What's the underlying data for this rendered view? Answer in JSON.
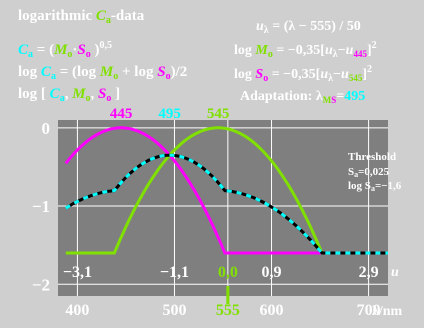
{
  "header": {
    "l1_a": "logarithmic ",
    "l1_b": "C",
    "l1_c": "a",
    "l1_d": "-data",
    "l2_a": "C",
    "l2_b": "a",
    "l2_c": " = (",
    "l2_d": "M",
    "l2_e": "o",
    "l2_f": "·",
    "l2_g": "S",
    "l2_h": "o",
    "l2_i": " )",
    "l2_j": "0,5",
    "l3_a": "log ",
    "l3_b": "C",
    "l3_c": "a",
    "l3_d": " = (log ",
    "l3_e": "M",
    "l3_f": "o",
    "l3_g": " + log ",
    "l3_h": "S",
    "l3_i": "o",
    "l3_j": ")/2",
    "l4_a": "log [ ",
    "l4_b": "C",
    "l4_c": "a",
    "l4_d": ", ",
    "l4_e": "M",
    "l4_f": "o",
    "l4_g": ", ",
    "l4_h": "S",
    "l4_i": "o",
    "l4_j": " ]",
    "r1_a": "u",
    "r1_b": "λ",
    "r1_c": " = (λ − 555) / 50",
    "r2_a": "log ",
    "r2_b": "M",
    "r2_c": "o",
    "r2_d": " = −0,35[",
    "r2_e": "u",
    "r2_f": "λ",
    "r2_g": "−",
    "r2_h": "u",
    "r2_i": "445",
    "r2_j": "]",
    "r2_k": "2",
    "r3_a": "log ",
    "r3_b": "S",
    "r3_c": "o",
    "r3_d": " = −0,35[",
    "r3_e": "u",
    "r3_f": "λ",
    "r3_g": "−",
    "r3_h": "u",
    "r3_i": "545",
    "r3_j": "]",
    "r3_k": "2",
    "r4_a": "Adaptation: λ",
    "r4_b": "M",
    "r4_c": "S",
    "r4_d": "=",
    "r4_e": "495"
  },
  "threshold": {
    "title": "Threshold",
    "l2_a": "S",
    "l2_b": "a",
    "l2_c": "=0,025",
    "l3_a": "log S",
    "l3_b": "a",
    "l3_c": "=−1,6"
  },
  "colors": {
    "magenta": "#ff00ff",
    "green": "#80e000",
    "cyan": "#00ffff",
    "black": "#000000",
    "white": "#ffffff",
    "red": "#ff0000",
    "gray_bg": "#cfcfcf",
    "plot_bg": "#7f7f7f",
    "dark_text": "#000000"
  },
  "chart_data": {
    "type": "line",
    "xlabel": "λ/nm",
    "u_label": "u",
    "xlim": [
      380,
      720
    ],
    "ylim": [
      -2.15,
      0.1
    ],
    "x_ticks": [
      {
        "v": 400,
        "label": "400"
      },
      {
        "v": 500,
        "label": "500"
      },
      {
        "v": 555,
        "label": "555"
      },
      {
        "v": 600,
        "label": "600"
      },
      {
        "v": 700,
        "label": "700"
      }
    ],
    "y_ticks": [
      {
        "v": 0,
        "label": "0"
      },
      {
        "v": -1,
        "label": "−1"
      },
      {
        "v": -2,
        "label": "−2"
      }
    ],
    "u_ticks": [
      {
        "v": 400,
        "label": "−3,1"
      },
      {
        "v": 500,
        "label": "−1,1"
      },
      {
        "v": 555,
        "label": "0,0"
      },
      {
        "v": 600,
        "label": "0,9"
      },
      {
        "v": 700,
        "label": "2,9"
      }
    ],
    "top_labels": [
      {
        "v": 445,
        "label": "445"
      },
      {
        "v": 495,
        "label": "495"
      },
      {
        "v": 545,
        "label": "545"
      }
    ],
    "threshold_log": -1.6,
    "series": [
      {
        "name": "M",
        "peak": 445
      },
      {
        "name": "S",
        "peak": 545
      },
      {
        "name": "C",
        "peak": 495
      }
    ],
    "grid": true
  }
}
